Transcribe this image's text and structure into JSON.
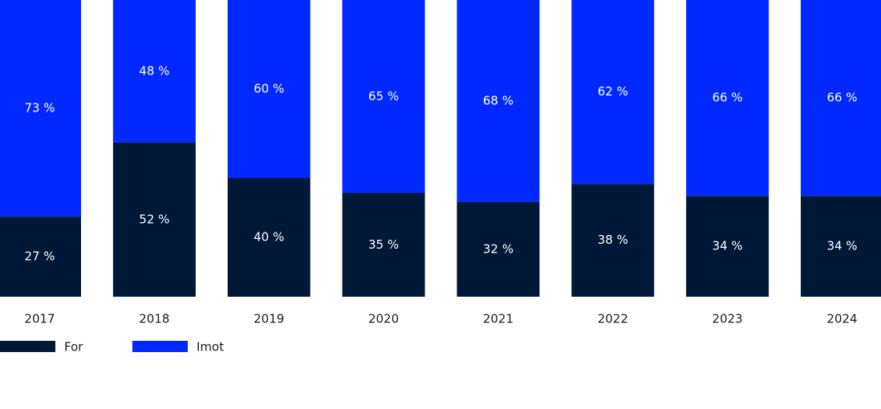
{
  "chart_data": {
    "type": "bar",
    "stacked": true,
    "percent_stacked": true,
    "categories": [
      "2017",
      "2018",
      "2019",
      "2020",
      "2021",
      "2022",
      "2023",
      "2024"
    ],
    "series": [
      {
        "name": "For",
        "color": "#001837",
        "values": [
          27,
          52,
          40,
          35,
          32,
          38,
          34,
          34
        ],
        "labels": [
          "27 %",
          "52 %",
          "40 %",
          "35 %",
          "32 %",
          "38 %",
          "34 %",
          "34 %"
        ]
      },
      {
        "name": "Imot",
        "color": "#0028ff",
        "values": [
          73,
          48,
          60,
          65,
          68,
          62,
          66,
          66
        ],
        "labels": [
          "73 %",
          "48 %",
          "60 %",
          "65 %",
          "68 %",
          "62 %",
          "66 %",
          "66 %"
        ]
      }
    ],
    "ylim": [
      0,
      100
    ],
    "grid": false,
    "legend_position": "bottom-left"
  }
}
